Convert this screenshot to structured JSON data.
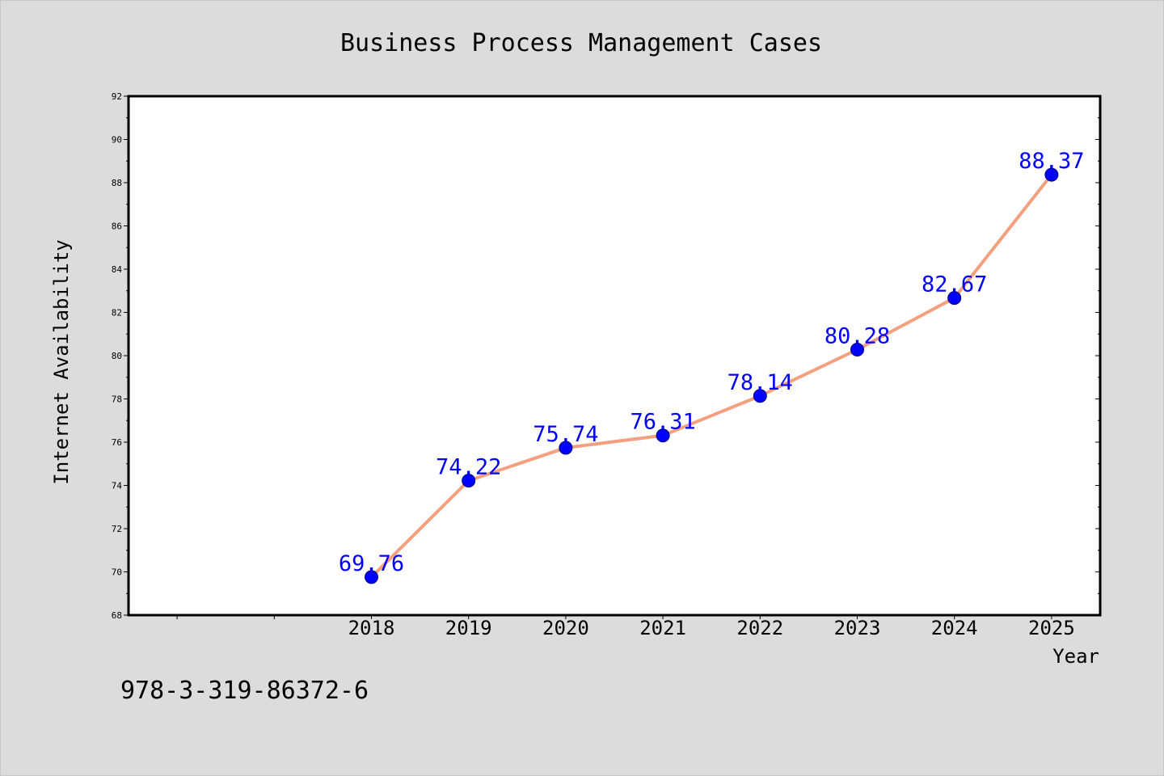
{
  "chart_data": {
    "type": "line",
    "title": "Business Process Management Cases",
    "xlabel": "Year",
    "ylabel": "Internet Availability",
    "categories": [
      "2018",
      "2019",
      "2020",
      "2021",
      "2022",
      "2023",
      "2024",
      "2025"
    ],
    "series": [
      {
        "values": [
          69.76,
          74.22,
          75.74,
          76.31,
          78.14,
          80.28,
          82.67,
          88.37
        ]
      }
    ],
    "value_labels": [
      "69.76",
      "74.22",
      "75.74",
      "76.31",
      "78.14",
      "80.28",
      "82.67",
      "88.37"
    ],
    "ylim": [
      68,
      92
    ],
    "yticks": [
      68,
      70,
      72,
      74,
      76,
      78,
      80,
      82,
      84,
      86,
      88,
      90,
      92
    ],
    "xlim": [
      2015.5,
      2025.5
    ],
    "grid": false,
    "line_color": "#f4a07e",
    "marker_color": "#0000ff",
    "label_color": "#0000ff",
    "plot_background": "#ffffff",
    "page_background": "#dcdcdc"
  },
  "footer": {
    "code": "978-3-319-86372-6"
  }
}
